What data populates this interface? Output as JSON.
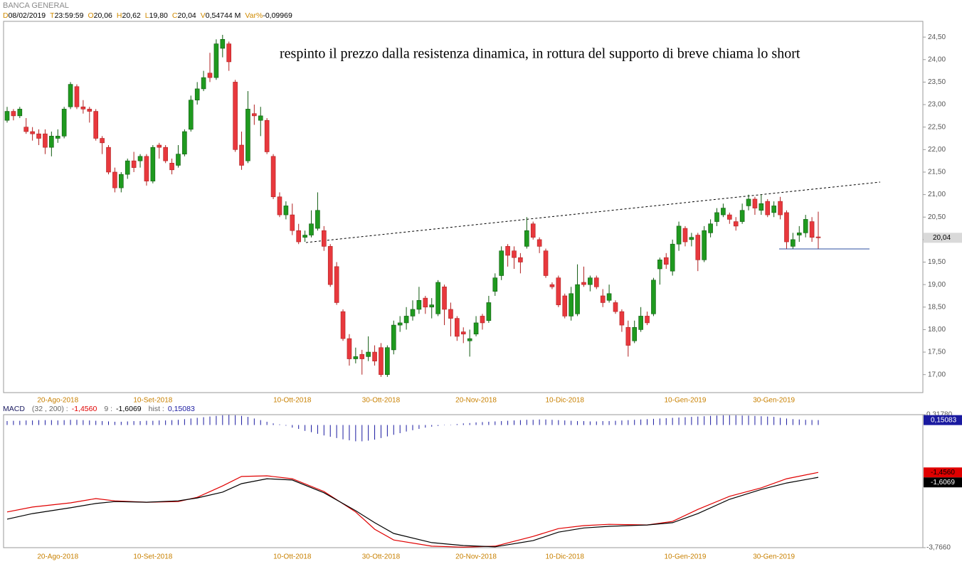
{
  "chart_data": {
    "type": "candlestick",
    "title": "BANCA GENERAL",
    "header": [
      {
        "key": "D",
        "value": "08/02/2019"
      },
      {
        "key": "T",
        "value": "23:59:59"
      },
      {
        "key": "O",
        "value": "20,06"
      },
      {
        "key": "H",
        "value": "20,62"
      },
      {
        "key": "L",
        "value": "19,80"
      },
      {
        "key": "C",
        "value": "20,04"
      },
      {
        "key": "V",
        "value": "0,54744 M"
      },
      {
        "key": "Var%",
        "value": "-0,09969"
      }
    ],
    "annotation": "respinto il prezzo dalla resistenza dinamica, in rottura del supporto di breve chiama lo short",
    "up_color": "#1f9a1f",
    "down_color": "#e8383d",
    "ylim": [
      16.6,
      24.85
    ],
    "yticks": [
      {
        "value": 17,
        "label": "17,00"
      },
      {
        "value": 17.5,
        "label": "17,50"
      },
      {
        "value": 18,
        "label": "18,00"
      },
      {
        "value": 18.5,
        "label": "18,50"
      },
      {
        "value": 19,
        "label": "19,00"
      },
      {
        "value": 19.5,
        "label": "19,50"
      },
      {
        "value": 20,
        "label": "20,00"
      },
      {
        "value": 20.5,
        "label": "20,50"
      },
      {
        "value": 21,
        "label": "21,00"
      },
      {
        "value": 21.5,
        "label": "21,50"
      },
      {
        "value": 22,
        "label": "22,00"
      },
      {
        "value": 22.5,
        "label": "22,50"
      },
      {
        "value": 23,
        "label": "23,00"
      },
      {
        "value": 23.5,
        "label": "23,50"
      },
      {
        "value": 24,
        "label": "24,00"
      },
      {
        "value": 24.5,
        "label": "24,50"
      }
    ],
    "categories": [
      null,
      null,
      null,
      null,
      null,
      null,
      null,
      null,
      "20-Ago-2018",
      null,
      null,
      null,
      null,
      null,
      null,
      null,
      null,
      null,
      null,
      null,
      null,
      null,
      null,
      "10-Set-2018",
      null,
      null,
      null,
      null,
      null,
      null,
      null,
      null,
      null,
      null,
      null,
      null,
      null,
      null,
      null,
      null,
      null,
      null,
      null,
      null,
      null,
      "10-Ott-2018",
      null,
      null,
      null,
      null,
      null,
      null,
      null,
      null,
      null,
      null,
      null,
      null,
      null,
      "30-Ott-2018",
      null,
      null,
      null,
      null,
      null,
      null,
      null,
      null,
      null,
      null,
      null,
      null,
      null,
      null,
      "20-Nov-2018",
      null,
      null,
      null,
      null,
      null,
      null,
      null,
      null,
      null,
      null,
      null,
      null,
      null,
      "10-Dic-2018",
      null,
      null,
      null,
      null,
      null,
      null,
      null,
      null,
      null,
      null,
      null,
      null,
      null,
      null,
      null,
      null,
      null,
      null,
      "10-Gen-2019",
      null,
      null,
      null,
      null,
      null,
      null,
      null,
      null,
      null,
      null,
      null,
      null,
      null,
      "30-Gen-2019",
      null,
      null,
      null,
      null,
      null,
      null,
      null
    ],
    "candles": [
      [
        22.65,
        22.95,
        22.6,
        22.85
      ],
      [
        22.85,
        22.9,
        22.65,
        22.75
      ],
      [
        22.75,
        22.95,
        22.7,
        22.9
      ],
      [
        22.5,
        22.7,
        22.35,
        22.4
      ],
      [
        22.4,
        22.5,
        22.2,
        22.35
      ],
      [
        22.35,
        22.45,
        22.1,
        22.25
      ],
      [
        22.35,
        22.45,
        21.9,
        22.05
      ],
      [
        22.05,
        22.4,
        21.85,
        22.3
      ],
      [
        22.25,
        22.45,
        22.15,
        22.3
      ],
      [
        22.3,
        22.95,
        22.25,
        22.9
      ],
      [
        22.95,
        23.5,
        22.9,
        23.45
      ],
      [
        23.4,
        23.45,
        22.9,
        22.95
      ],
      [
        22.95,
        23.1,
        22.8,
        22.9
      ],
      [
        22.9,
        22.95,
        22.6,
        22.85
      ],
      [
        22.85,
        22.9,
        22.2,
        22.25
      ],
      [
        22.25,
        22.3,
        21.9,
        22.15
      ],
      [
        22.05,
        22.1,
        21.45,
        21.5
      ],
      [
        21.5,
        21.6,
        21.05,
        21.15
      ],
      [
        21.15,
        21.5,
        21.05,
        21.45
      ],
      [
        21.45,
        21.8,
        21.35,
        21.75
      ],
      [
        21.75,
        21.95,
        21.5,
        21.6
      ],
      [
        21.75,
        21.9,
        21.6,
        21.85
      ],
      [
        21.85,
        21.9,
        21.2,
        21.3
      ],
      [
        21.3,
        22.1,
        21.25,
        22.05
      ],
      [
        22.1,
        22.15,
        21.8,
        22.05
      ],
      [
        22.05,
        22.1,
        21.7,
        21.75
      ],
      [
        21.7,
        21.8,
        21.45,
        21.55
      ],
      [
        21.65,
        22.1,
        21.6,
        21.9
      ],
      [
        21.9,
        22.45,
        21.85,
        22.4
      ],
      [
        22.45,
        23.2,
        22.4,
        23.1
      ],
      [
        23.1,
        23.5,
        23.0,
        23.35
      ],
      [
        23.35,
        23.75,
        23.3,
        23.6
      ],
      [
        23.7,
        24.15,
        23.5,
        23.6
      ],
      [
        23.6,
        24.45,
        23.55,
        24.35
      ],
      [
        24.25,
        24.55,
        24.05,
        24.45
      ],
      [
        24.35,
        24.4,
        23.75,
        23.95
      ],
      [
        23.5,
        23.55,
        21.95,
        22.0
      ],
      [
        22.1,
        22.4,
        21.55,
        21.65
      ],
      [
        21.75,
        23.3,
        21.7,
        22.9
      ],
      [
        22.8,
        23.0,
        22.55,
        22.75
      ],
      [
        22.65,
        22.95,
        22.3,
        22.75
      ],
      [
        22.65,
        22.7,
        21.9,
        21.95
      ],
      [
        21.85,
        21.9,
        20.9,
        20.95
      ],
      [
        20.95,
        21.05,
        20.5,
        20.55
      ],
      [
        20.55,
        20.85,
        20.45,
        20.75
      ],
      [
        20.55,
        20.8,
        20.1,
        20.2
      ],
      [
        20.2,
        20.35,
        19.9,
        19.95
      ],
      [
        20.05,
        20.2,
        19.95,
        20.1
      ],
      [
        20.1,
        20.65,
        20.05,
        20.35
      ],
      [
        20.25,
        21.05,
        20.2,
        20.65
      ],
      [
        20.2,
        20.3,
        19.75,
        19.85
      ],
      [
        19.85,
        19.9,
        18.95,
        19.0
      ],
      [
        19.4,
        19.5,
        18.55,
        18.6
      ],
      [
        18.4,
        18.45,
        17.75,
        17.8
      ],
      [
        17.8,
        17.9,
        17.2,
        17.35
      ],
      [
        17.35,
        17.6,
        17.25,
        17.4
      ],
      [
        17.45,
        17.55,
        17.0,
        17.35
      ],
      [
        17.4,
        17.85,
        17.3,
        17.5
      ],
      [
        17.5,
        17.65,
        17.2,
        17.3
      ],
      [
        17.6,
        17.7,
        16.95,
        17.0
      ],
      [
        17.0,
        17.65,
        16.95,
        17.6
      ],
      [
        17.55,
        18.2,
        17.45,
        18.1
      ],
      [
        18.1,
        18.3,
        17.95,
        18.15
      ],
      [
        18.15,
        18.5,
        18.0,
        18.3
      ],
      [
        18.3,
        18.65,
        18.2,
        18.45
      ],
      [
        18.45,
        18.95,
        18.35,
        18.65
      ],
      [
        18.7,
        18.75,
        18.35,
        18.5
      ],
      [
        18.5,
        18.7,
        18.25,
        18.55
      ],
      [
        18.35,
        19.1,
        18.3,
        19.05
      ],
      [
        18.95,
        19.0,
        18.1,
        18.45
      ],
      [
        18.45,
        18.6,
        17.85,
        18.25
      ],
      [
        18.25,
        18.3,
        17.75,
        17.85
      ],
      [
        17.95,
        18.05,
        17.7,
        17.9
      ],
      [
        17.75,
        18.0,
        17.4,
        17.8
      ],
      [
        17.9,
        18.3,
        17.85,
        18.15
      ],
      [
        18.3,
        18.35,
        18.0,
        18.15
      ],
      [
        18.2,
        18.75,
        18.15,
        18.6
      ],
      [
        18.85,
        19.25,
        18.75,
        19.15
      ],
      [
        19.2,
        19.85,
        19.1,
        19.75
      ],
      [
        19.85,
        19.9,
        19.4,
        19.65
      ],
      [
        19.75,
        19.85,
        19.35,
        19.6
      ],
      [
        19.6,
        19.7,
        19.25,
        19.5
      ],
      [
        19.85,
        20.5,
        19.8,
        20.2
      ],
      [
        20.35,
        20.4,
        20.0,
        20.05
      ],
      [
        20.0,
        20.05,
        19.7,
        19.85
      ],
      [
        19.75,
        19.8,
        19.15,
        19.2
      ],
      [
        19.0,
        19.05,
        18.9,
        18.95
      ],
      [
        19.15,
        19.2,
        18.5,
        18.55
      ],
      [
        18.75,
        18.8,
        18.25,
        18.3
      ],
      [
        18.3,
        18.95,
        18.2,
        18.8
      ],
      [
        18.35,
        19.45,
        18.3,
        19.0
      ],
      [
        19.05,
        19.4,
        18.95,
        19.0
      ],
      [
        19.0,
        19.2,
        18.85,
        19.15
      ],
      [
        19.15,
        19.2,
        18.9,
        18.95
      ],
      [
        18.75,
        18.9,
        18.5,
        18.6
      ],
      [
        18.65,
        19.0,
        18.6,
        18.8
      ],
      [
        18.6,
        18.65,
        18.35,
        18.4
      ],
      [
        18.4,
        18.45,
        17.95,
        18.1
      ],
      [
        18.05,
        18.2,
        17.4,
        17.65
      ],
      [
        17.75,
        18.2,
        17.7,
        18.05
      ],
      [
        18.0,
        18.5,
        17.95,
        18.3
      ],
      [
        18.3,
        18.4,
        18.1,
        18.15
      ],
      [
        18.35,
        19.15,
        18.3,
        19.1
      ],
      [
        19.35,
        19.6,
        19.0,
        19.55
      ],
      [
        19.6,
        19.7,
        19.35,
        19.45
      ],
      [
        19.3,
        20.0,
        19.2,
        19.9
      ],
      [
        19.9,
        20.4,
        19.75,
        20.3
      ],
      [
        20.25,
        20.3,
        19.85,
        19.95
      ],
      [
        20.0,
        20.15,
        19.85,
        20.05
      ],
      [
        20.1,
        20.15,
        19.3,
        19.55
      ],
      [
        19.55,
        20.3,
        19.5,
        20.2
      ],
      [
        20.15,
        20.45,
        20.05,
        20.35
      ],
      [
        20.4,
        20.7,
        20.3,
        20.6
      ],
      [
        20.55,
        20.8,
        20.5,
        20.7
      ],
      [
        20.55,
        20.6,
        20.35,
        20.45
      ],
      [
        20.4,
        20.5,
        20.2,
        20.3
      ],
      [
        20.4,
        20.8,
        20.35,
        20.65
      ],
      [
        20.75,
        21.0,
        20.65,
        20.9
      ],
      [
        20.9,
        20.95,
        20.55,
        20.7
      ],
      [
        20.65,
        21.0,
        20.55,
        20.8
      ],
      [
        20.85,
        20.9,
        20.5,
        20.55
      ],
      [
        20.6,
        20.85,
        20.5,
        20.75
      ],
      [
        20.85,
        20.95,
        20.45,
        20.55
      ],
      [
        20.6,
        20.65,
        19.8,
        19.95
      ],
      [
        19.85,
        20.15,
        19.8,
        20.0
      ],
      [
        20.1,
        20.3,
        19.95,
        20.15
      ],
      [
        20.15,
        20.55,
        20.05,
        20.45
      ],
      [
        20.4,
        20.5,
        19.95,
        20.05
      ],
      [
        20.06,
        20.62,
        19.8,
        20.04
      ]
    ],
    "macd": {
      "type": "line",
      "ylim": [
        -3.766,
        0.3178
      ],
      "yticks": [
        {
          "value": 0.3178,
          "label": "0,31780"
        },
        {
          "value": -3.766,
          "label": "-3,7660"
        }
      ],
      "series": [
        {
          "name": "MACD",
          "params": "(32 , 200) :",
          "color": "#e00000",
          "value_label": "-1,4560",
          "x": [
            0,
            4,
            10,
            14,
            17,
            22,
            27,
            30,
            34,
            37,
            41,
            45,
            50,
            55,
            58,
            61,
            67,
            72,
            77,
            83,
            87,
            91,
            95,
            101,
            105,
            109,
            114,
            119,
            123,
            128
          ],
          "values": [
            -2.67,
            -2.52,
            -2.39,
            -2.26,
            -2.33,
            -2.37,
            -2.35,
            -2.22,
            -1.87,
            -1.58,
            -1.56,
            -1.65,
            -2.04,
            -2.67,
            -3.2,
            -3.53,
            -3.72,
            -3.75,
            -3.72,
            -3.42,
            -3.18,
            -3.09,
            -3.05,
            -3.07,
            -2.96,
            -2.59,
            -2.19,
            -1.93,
            -1.65,
            -1.456
          ]
        },
        {
          "name": "9 :",
          "color": "#000000",
          "value_label": "-1,6069",
          "x": [
            0,
            4,
            10,
            14,
            17,
            22,
            27,
            30,
            34,
            37,
            41,
            45,
            50,
            55,
            58,
            61,
            67,
            72,
            77,
            83,
            87,
            91,
            95,
            101,
            105,
            109,
            114,
            119,
            123,
            128
          ],
          "values": [
            -2.89,
            -2.72,
            -2.54,
            -2.41,
            -2.35,
            -2.37,
            -2.33,
            -2.24,
            -2.06,
            -1.8,
            -1.65,
            -1.69,
            -2.08,
            -2.63,
            -3.0,
            -3.33,
            -3.61,
            -3.7,
            -3.74,
            -3.55,
            -3.29,
            -3.16,
            -3.11,
            -3.07,
            -3.0,
            -2.72,
            -2.28,
            -1.98,
            -1.78,
            -1.6069
          ]
        },
        {
          "name": "hist :",
          "type": "bar",
          "color": "#1a1aa0",
          "value_label": "0,15083",
          "values": [
            0.12,
            0.13,
            0.13,
            0.14,
            0.14,
            0.15,
            0.15,
            0.15,
            0.14,
            0.15,
            0.16,
            0.16,
            0.15,
            0.14,
            0.13,
            0.12,
            0.11,
            0.1,
            0.1,
            0.11,
            0.12,
            0.12,
            0.13,
            0.13,
            0.14,
            0.14,
            0.15,
            0.16,
            0.18,
            0.2,
            0.22,
            0.24,
            0.26,
            0.28,
            0.3,
            0.31,
            0.3,
            0.28,
            0.25,
            0.2,
            0.15,
            0.1,
            0.05,
            0.02,
            -0.02,
            -0.08,
            -0.12,
            -0.18,
            -0.22,
            -0.27,
            -0.32,
            -0.36,
            -0.4,
            -0.44,
            -0.47,
            -0.5,
            -0.5,
            -0.48,
            -0.45,
            -0.4,
            -0.35,
            -0.3,
            -0.25,
            -0.2,
            -0.16,
            -0.12,
            -0.08,
            -0.05,
            -0.03,
            -0.01,
            0.01,
            0.03,
            0.05,
            0.06,
            0.08,
            0.09,
            0.1,
            0.11,
            0.12,
            0.13,
            0.14,
            0.15,
            0.16,
            0.16,
            0.17,
            0.17,
            0.16,
            0.15,
            0.14,
            0.13,
            0.12,
            0.12,
            0.11,
            0.11,
            0.12,
            0.12,
            0.13,
            0.14,
            0.15,
            0.16,
            0.17,
            0.18,
            0.19,
            0.2,
            0.21,
            0.22,
            0.23,
            0.24,
            0.25,
            0.26,
            0.27,
            0.28,
            0.29,
            0.3,
            0.3,
            0.3,
            0.29,
            0.29,
            0.28,
            0.27,
            0.26,
            0.25,
            0.22,
            0.2,
            0.18,
            0.17,
            0.16,
            0.155,
            0.15083
          ]
        }
      ]
    }
  }
}
